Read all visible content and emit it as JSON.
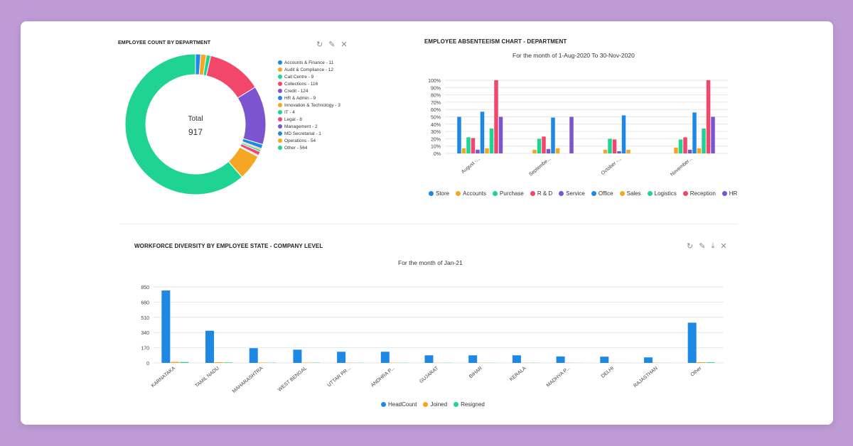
{
  "donut": {
    "title": "EMPLOYEE COUNT BY DEPARTMENT",
    "center_label": "Total",
    "center_value": "917",
    "icons": [
      "refresh-icon",
      "edit-icon",
      "close-icon"
    ]
  },
  "absenteeism": {
    "title": "EMPLOYEE ABSENTEEISM CHART - DEPARTMENT",
    "subtitle": "For the month of 1-Aug-2020 To 30-Nov-2020"
  },
  "workforce": {
    "title": "WORKFORCE DIVERSITY BY EMPLOYEE STATE - COMPANY LEVEL",
    "subtitle": "For the month of Jan-21",
    "icons": [
      "refresh-icon",
      "edit-icon",
      "download-icon",
      "close-icon"
    ]
  },
  "chart_data": [
    {
      "type": "pie",
      "title": "EMPLOYEE COUNT BY DEPARTMENT",
      "legend_position": "right",
      "slices": [
        {
          "label": "Accounts & Finance - 11",
          "value": 11,
          "color": "#1e88e5"
        },
        {
          "label": "Audit & Compliance - 12",
          "value": 12,
          "color": "#f5a623"
        },
        {
          "label": "Call Centre - 9",
          "value": 9,
          "color": "#1fd393"
        },
        {
          "label": "Collections - 116",
          "value": 116,
          "color": "#f2476a"
        },
        {
          "label": "Credit - 124",
          "value": 124,
          "color": "#7a55cf"
        },
        {
          "label": "HR & Admin - 9",
          "value": 9,
          "color": "#1e88e5"
        },
        {
          "label": "Innovation & Technology - 3",
          "value": 3,
          "color": "#f5a623"
        },
        {
          "label": "IT - 4",
          "value": 4,
          "color": "#1fd393"
        },
        {
          "label": "Legal - 8",
          "value": 8,
          "color": "#f2476a"
        },
        {
          "label": "Management - 2",
          "value": 2,
          "color": "#7a55cf"
        },
        {
          "label": "MD Secretariat - 1",
          "value": 1,
          "color": "#1e88e5"
        },
        {
          "label": "Operations - 54",
          "value": 54,
          "color": "#f5a623"
        },
        {
          "label": "Other - 564",
          "value": 564,
          "color": "#1fd393"
        }
      ]
    },
    {
      "type": "bar",
      "title": "EMPLOYEE ABSENTEEISM CHART - DEPARTMENT",
      "subtitle": "For the month of 1-Aug-2020 To 30-Nov-2020",
      "categories": [
        "August -...",
        "Septembe...",
        "October -...",
        "November..."
      ],
      "ylim": [
        0,
        100
      ],
      "yticks": [
        "0%",
        "10%",
        "20%",
        "30%",
        "40%",
        "50%",
        "60%",
        "70%",
        "80%",
        "90%",
        "100%"
      ],
      "legend_position": "bottom",
      "grid": true,
      "series": [
        {
          "name": "Store",
          "color": "#1e88e5",
          "values": [
            50,
            0,
            0,
            0
          ]
        },
        {
          "name": "Accounts",
          "color": "#f5a623",
          "values": [
            7,
            5,
            5,
            8
          ]
        },
        {
          "name": "Purchase",
          "color": "#1fd393",
          "values": [
            22,
            20,
            20,
            19
          ]
        },
        {
          "name": "R & D",
          "color": "#f2476a",
          "values": [
            21,
            23,
            19,
            22
          ]
        },
        {
          "name": "Service",
          "color": "#7a55cf",
          "values": [
            5,
            6,
            3,
            5
          ]
        },
        {
          "name": "Office",
          "color": "#1e88e5",
          "values": [
            57,
            49,
            52,
            56
          ]
        },
        {
          "name": "Sales",
          "color": "#f5a623",
          "values": [
            7,
            7,
            5,
            7
          ]
        },
        {
          "name": "Logistics",
          "color": "#1fd393",
          "values": [
            34,
            0,
            0,
            34
          ]
        },
        {
          "name": "Reception",
          "color": "#f2476a",
          "values": [
            100,
            0,
            0,
            100
          ]
        },
        {
          "name": "HR",
          "color": "#7a55cf",
          "values": [
            50,
            50,
            0,
            50
          ]
        }
      ]
    },
    {
      "type": "bar",
      "title": "WORKFORCE DIVERSITY BY EMPLOYEE STATE - COMPANY LEVEL",
      "subtitle": "For the month of Jan-21",
      "categories": [
        "KARNATAKA",
        "TAMIL NADU",
        "MAHARASHTRA",
        "WEST BENGAL",
        "UTTAR PR...",
        "ANDHRA P...",
        "GUJARAT",
        "BIHAR",
        "KERALA",
        "MADHYA P...",
        "DELHI",
        "RAJASTHAN",
        "Other"
      ],
      "ylim": [
        0,
        850
      ],
      "yticks": [
        "0",
        "170",
        "340",
        "510",
        "680",
        "850"
      ],
      "legend_position": "bottom",
      "grid": true,
      "series": [
        {
          "name": "HeadCount",
          "color": "#1e88e5",
          "values": [
            810,
            360,
            165,
            148,
            125,
            125,
            85,
            85,
            85,
            72,
            70,
            62,
            450
          ]
        },
        {
          "name": "Joined",
          "color": "#f5a623",
          "values": [
            12,
            8,
            4,
            4,
            3,
            3,
            2,
            2,
            2,
            2,
            2,
            2,
            8
          ]
        },
        {
          "name": "Resigned",
          "color": "#1fd393",
          "values": [
            10,
            6,
            3,
            3,
            2,
            2,
            2,
            2,
            2,
            1,
            1,
            1,
            7
          ]
        }
      ]
    }
  ]
}
